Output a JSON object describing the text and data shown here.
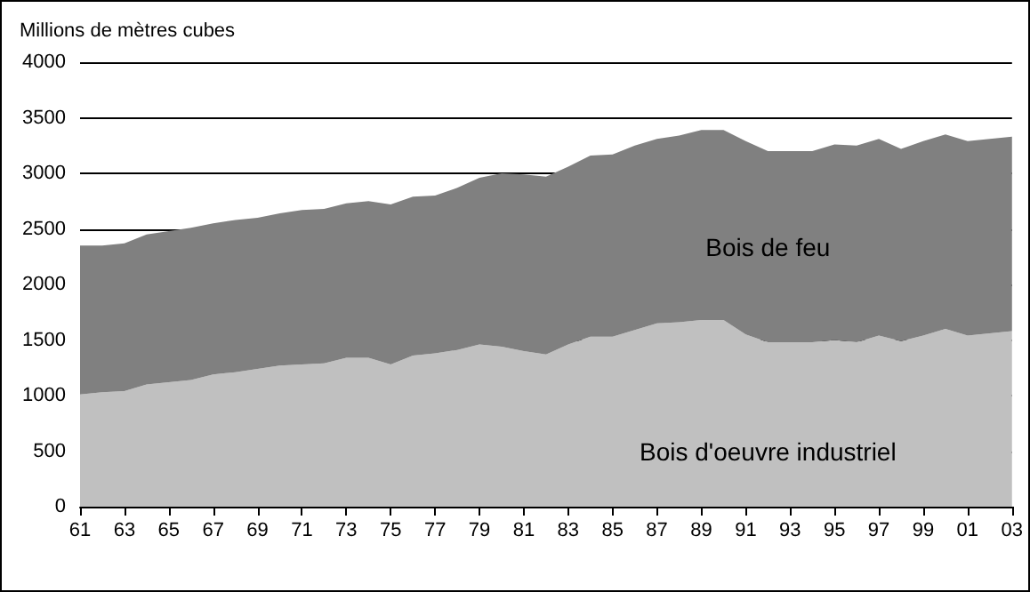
{
  "chart_data": {
    "type": "area",
    "stacked": true,
    "ylabel": "Millions de mètres cubes",
    "categories": [
      "61",
      null,
      "63",
      null,
      "65",
      null,
      "67",
      null,
      "69",
      null,
      "71",
      null,
      "73",
      null,
      "75",
      null,
      "77",
      null,
      "79",
      null,
      "81",
      null,
      "83",
      null,
      "85",
      null,
      "87",
      null,
      "89",
      null,
      "91",
      null,
      "93",
      null,
      "95",
      null,
      "97",
      null,
      "99",
      null,
      "01",
      null,
      "03"
    ],
    "series": [
      {
        "name": "Bois d'oeuvre industriel",
        "color": "#c0c0c0",
        "values": [
          1010,
          1030,
          1040,
          1100,
          1120,
          1140,
          1190,
          1210,
          1240,
          1270,
          1280,
          1290,
          1340,
          1340,
          1280,
          1360,
          1380,
          1410,
          1460,
          1440,
          1400,
          1370,
          1460,
          1530,
          1530,
          1590,
          1650,
          1660,
          1680,
          1680,
          1550,
          1480,
          1480,
          1480,
          1500,
          1480,
          1540,
          1490,
          1540,
          1600,
          1540,
          1560,
          1580
        ]
      },
      {
        "name": "Bois de feu",
        "color": "#808080",
        "values": [
          1340,
          1320,
          1330,
          1350,
          1360,
          1370,
          1360,
          1370,
          1360,
          1370,
          1390,
          1390,
          1390,
          1410,
          1440,
          1430,
          1420,
          1460,
          1500,
          1560,
          1590,
          1600,
          1600,
          1630,
          1640,
          1660,
          1660,
          1680,
          1710,
          1710,
          1740,
          1720,
          1720,
          1720,
          1760,
          1770,
          1770,
          1730,
          1750,
          1750,
          1750,
          1750,
          1750
        ]
      }
    ],
    "ylim": [
      0,
      4000
    ],
    "yticks": [
      0,
      500,
      1000,
      1500,
      2000,
      2500,
      3000,
      3500,
      4000
    ],
    "grid": "y",
    "legend": false
  }
}
